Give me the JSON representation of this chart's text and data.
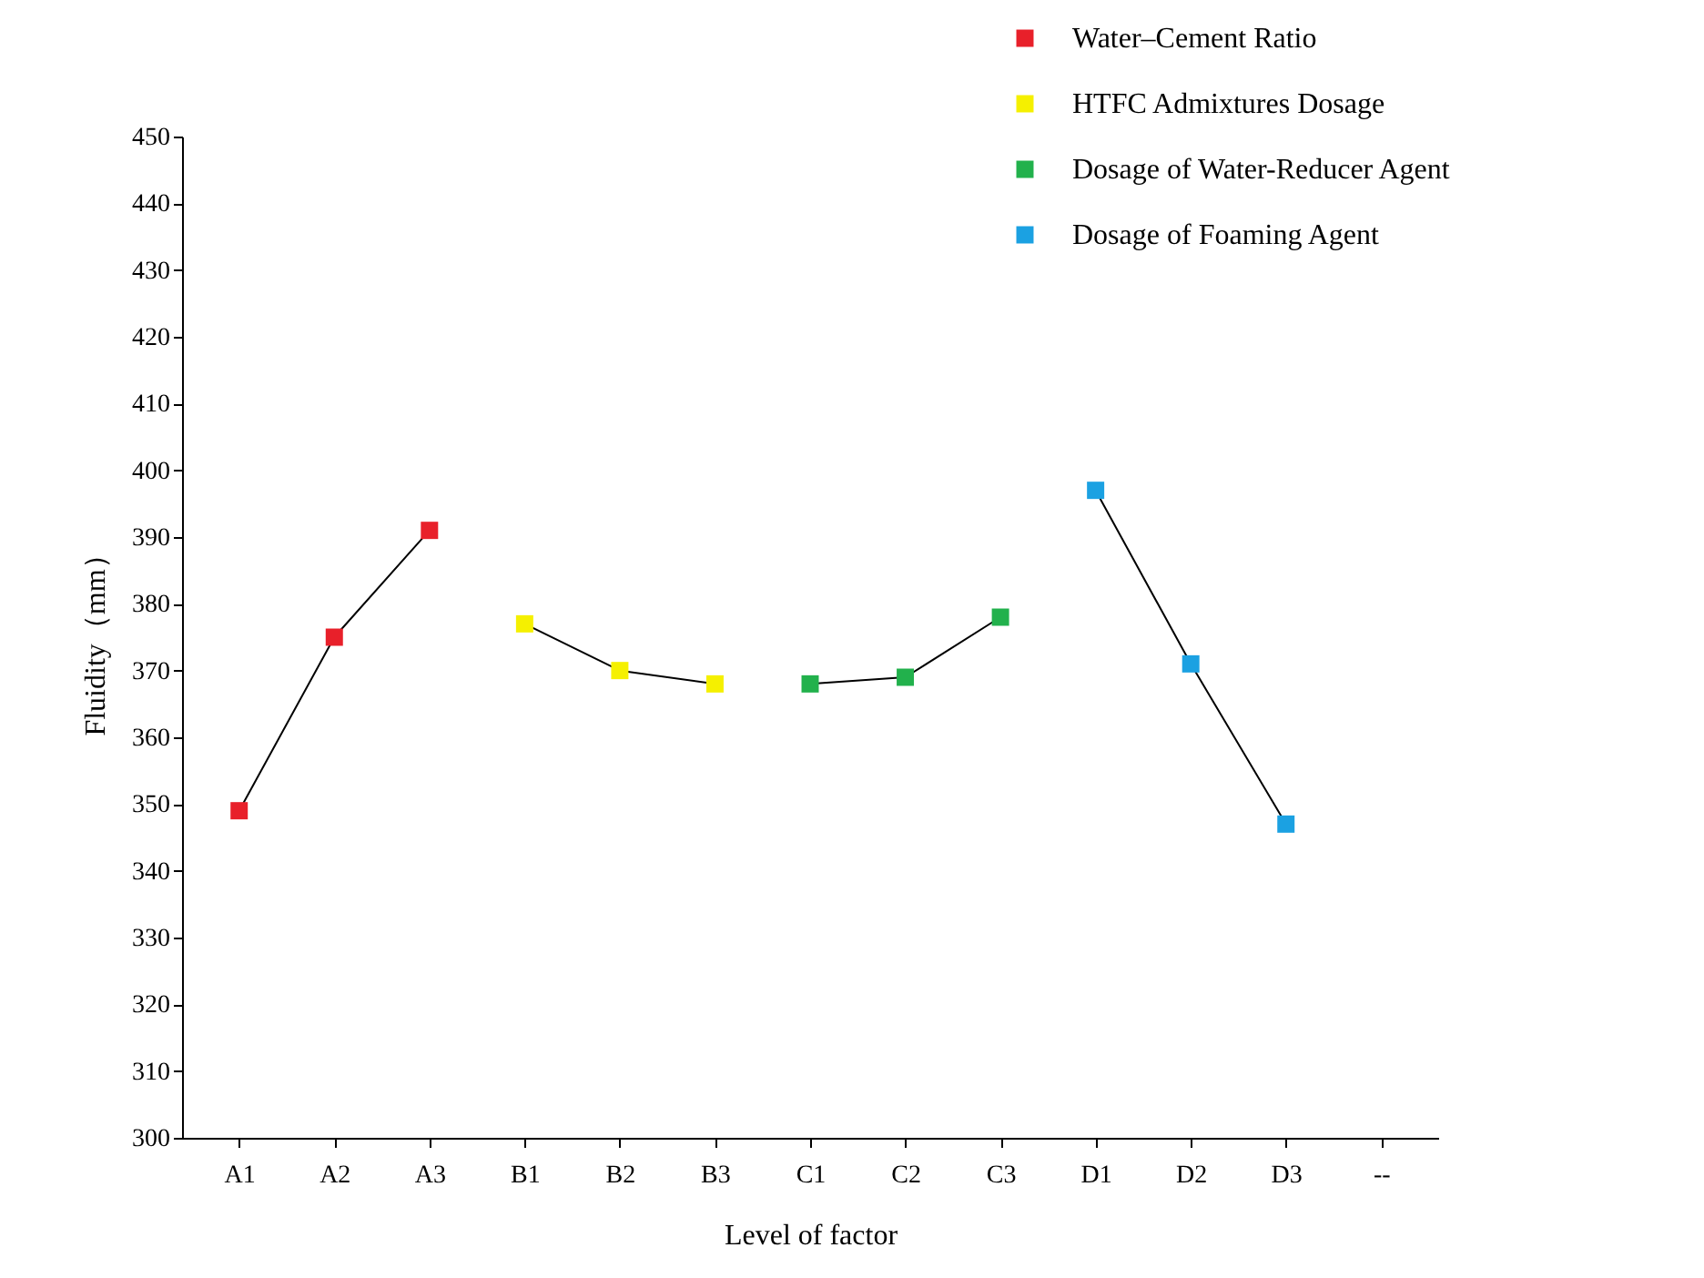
{
  "chart_data": {
    "type": "line",
    "xlabel": "Level of factor",
    "ylabel": "Fluidity（mm）",
    "categories": [
      "A1",
      "A2",
      "A3",
      "B1",
      "B2",
      "B3",
      "C1",
      "C2",
      "C3",
      "D1",
      "D2",
      "D3",
      "--"
    ],
    "series": [
      {
        "name": "Water–Cement Ratio",
        "color": "#e8202a",
        "values": [
          349,
          375,
          391,
          null,
          null,
          null,
          null,
          null,
          null,
          null,
          null,
          null,
          null
        ]
      },
      {
        "name": "HTFC Admixtures Dosage",
        "color": "#f5f000",
        "values": [
          null,
          null,
          null,
          377,
          370,
          368,
          null,
          null,
          null,
          null,
          null,
          null,
          null
        ]
      },
      {
        "name": "Dosage of Water-Reducer Agent",
        "color": "#22b14c",
        "values": [
          null,
          null,
          null,
          null,
          null,
          null,
          368,
          369,
          378,
          null,
          null,
          null,
          null
        ]
      },
      {
        "name": "Dosage of Foaming Agent",
        "color": "#1ba1e2",
        "values": [
          null,
          null,
          null,
          null,
          null,
          null,
          null,
          null,
          null,
          397,
          371,
          347,
          null
        ]
      }
    ],
    "ylim": [
      300,
      450
    ],
    "yticks": [
      300,
      310,
      320,
      330,
      340,
      350,
      360,
      370,
      380,
      390,
      400,
      410,
      420,
      430,
      440,
      450
    ],
    "grid": false,
    "legend": "top right",
    "marker": "square",
    "line_style": "solid"
  }
}
